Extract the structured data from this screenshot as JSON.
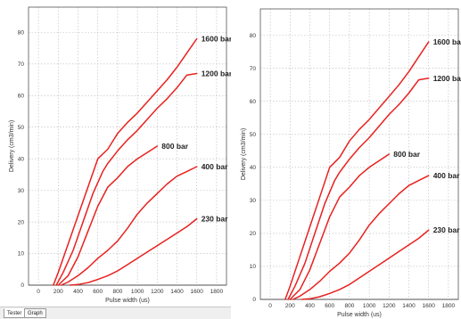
{
  "chart_data": [
    {
      "type": "line",
      "ylabel": "Delivery (cm3/min)",
      "xlabel": "Pulse width (us)",
      "xlim": [
        -100,
        1900
      ],
      "ylim": [
        0,
        88
      ],
      "x_ticks": [
        0,
        200,
        400,
        600,
        800,
        1000,
        1200,
        1400,
        1600,
        1800
      ],
      "y_ticks": [
        0,
        10,
        20,
        30,
        40,
        50,
        60,
        70,
        80
      ],
      "grid": true,
      "legend": "none",
      "series": [
        {
          "name": "1600 bar",
          "color": "#e8211f",
          "x": [
            150,
            200,
            300,
            400,
            500,
            600,
            700,
            800,
            900,
            1000,
            1100,
            1200,
            1300,
            1400,
            1500,
            1600
          ],
          "y": [
            0,
            4,
            13,
            22,
            31,
            40,
            43,
            48,
            51.5,
            54.5,
            58,
            61.5,
            65,
            69,
            73.5,
            78
          ]
        },
        {
          "name": "1200 bar",
          "color": "#e8211f",
          "x": [
            180,
            250,
            350,
            450,
            550,
            650,
            700,
            800,
            900,
            1000,
            1100,
            1200,
            1300,
            1400,
            1500,
            1600
          ],
          "y": [
            0,
            4,
            11,
            20,
            29,
            36,
            38.5,
            42.5,
            46,
            49,
            52.5,
            56,
            59,
            62.5,
            66.5,
            67
          ]
        },
        {
          "name": "800 bar",
          "color": "#e8211f",
          "x": [
            200,
            300,
            400,
            500,
            600,
            700,
            800,
            900,
            1000,
            1100,
            1200
          ],
          "y": [
            0,
            3,
            9,
            17,
            25,
            31,
            34,
            37.5,
            40,
            42,
            44
          ]
        },
        {
          "name": "400 bar",
          "color": "#e8211f",
          "x": [
            230,
            300,
            400,
            500,
            600,
            700,
            800,
            900,
            1000,
            1100,
            1200,
            1300,
            1400,
            1500,
            1600
          ],
          "y": [
            0,
            1,
            3,
            5.5,
            8.5,
            11,
            14,
            18,
            22.5,
            26,
            29,
            32,
            34.5,
            36,
            37.5
          ]
        },
        {
          "name": "230 bar",
          "color": "#e8211f",
          "x": [
            320,
            400,
            500,
            600,
            700,
            800,
            900,
            1000,
            1100,
            1200,
            1300,
            1400,
            1500,
            1600
          ],
          "y": [
            0,
            0.2,
            0.8,
            1.8,
            3,
            4.5,
            6.5,
            8.5,
            10.5,
            12.5,
            14.5,
            16.5,
            18.5,
            21
          ]
        }
      ]
    },
    {
      "type": "line",
      "ylabel": "Delivery (cm3/min)",
      "xlabel": "Pulse width (us)",
      "xlim": [
        -100,
        1900
      ],
      "ylim": [
        0,
        88
      ],
      "x_ticks": [
        0,
        200,
        400,
        600,
        800,
        1000,
        1200,
        1400,
        1600,
        1800
      ],
      "y_ticks": [
        0,
        10,
        20,
        30,
        40,
        50,
        60,
        70,
        80
      ],
      "grid": true,
      "legend": "none",
      "series": [
        {
          "name": "1600 bar",
          "color": "#e8211f",
          "x": [
            150,
            200,
            300,
            400,
            500,
            600,
            700,
            800,
            900,
            1000,
            1100,
            1200,
            1300,
            1400,
            1500,
            1600
          ],
          "y": [
            0,
            4,
            13,
            22,
            31,
            40,
            43,
            48,
            51.5,
            54.5,
            58,
            61.5,
            65,
            69,
            73.5,
            78
          ]
        },
        {
          "name": "1200 bar",
          "color": "#e8211f",
          "x": [
            180,
            250,
            350,
            450,
            550,
            650,
            700,
            800,
            900,
            1000,
            1100,
            1200,
            1300,
            1400,
            1500,
            1600
          ],
          "y": [
            0,
            4,
            11,
            20,
            29,
            36,
            38.5,
            42.5,
            46,
            49,
            52.5,
            56,
            59,
            62.5,
            66.5,
            67
          ]
        },
        {
          "name": "800 bar",
          "color": "#e8211f",
          "x": [
            200,
            300,
            400,
            500,
            600,
            700,
            800,
            900,
            1000,
            1100,
            1200
          ],
          "y": [
            0,
            3,
            9,
            17,
            25,
            31,
            34,
            37.5,
            40,
            42,
            44
          ]
        },
        {
          "name": "400 bar",
          "color": "#e8211f",
          "x": [
            230,
            300,
            400,
            500,
            600,
            700,
            800,
            900,
            1000,
            1100,
            1200,
            1300,
            1400,
            1500,
            1600
          ],
          "y": [
            0,
            1,
            3,
            5.5,
            8.5,
            11,
            14,
            18,
            22.5,
            26,
            29,
            32,
            34.5,
            36,
            37.5
          ]
        },
        {
          "name": "230 bar",
          "color": "#e8211f",
          "x": [
            320,
            400,
            500,
            600,
            700,
            800,
            900,
            1000,
            1100,
            1200,
            1300,
            1400,
            1500,
            1600
          ],
          "y": [
            0,
            0.2,
            0.8,
            1.8,
            3,
            4.5,
            6.5,
            8.5,
            10.5,
            12.5,
            14.5,
            16.5,
            18.5,
            21
          ]
        }
      ]
    }
  ],
  "tabs": [
    "Tester",
    "Graph"
  ]
}
